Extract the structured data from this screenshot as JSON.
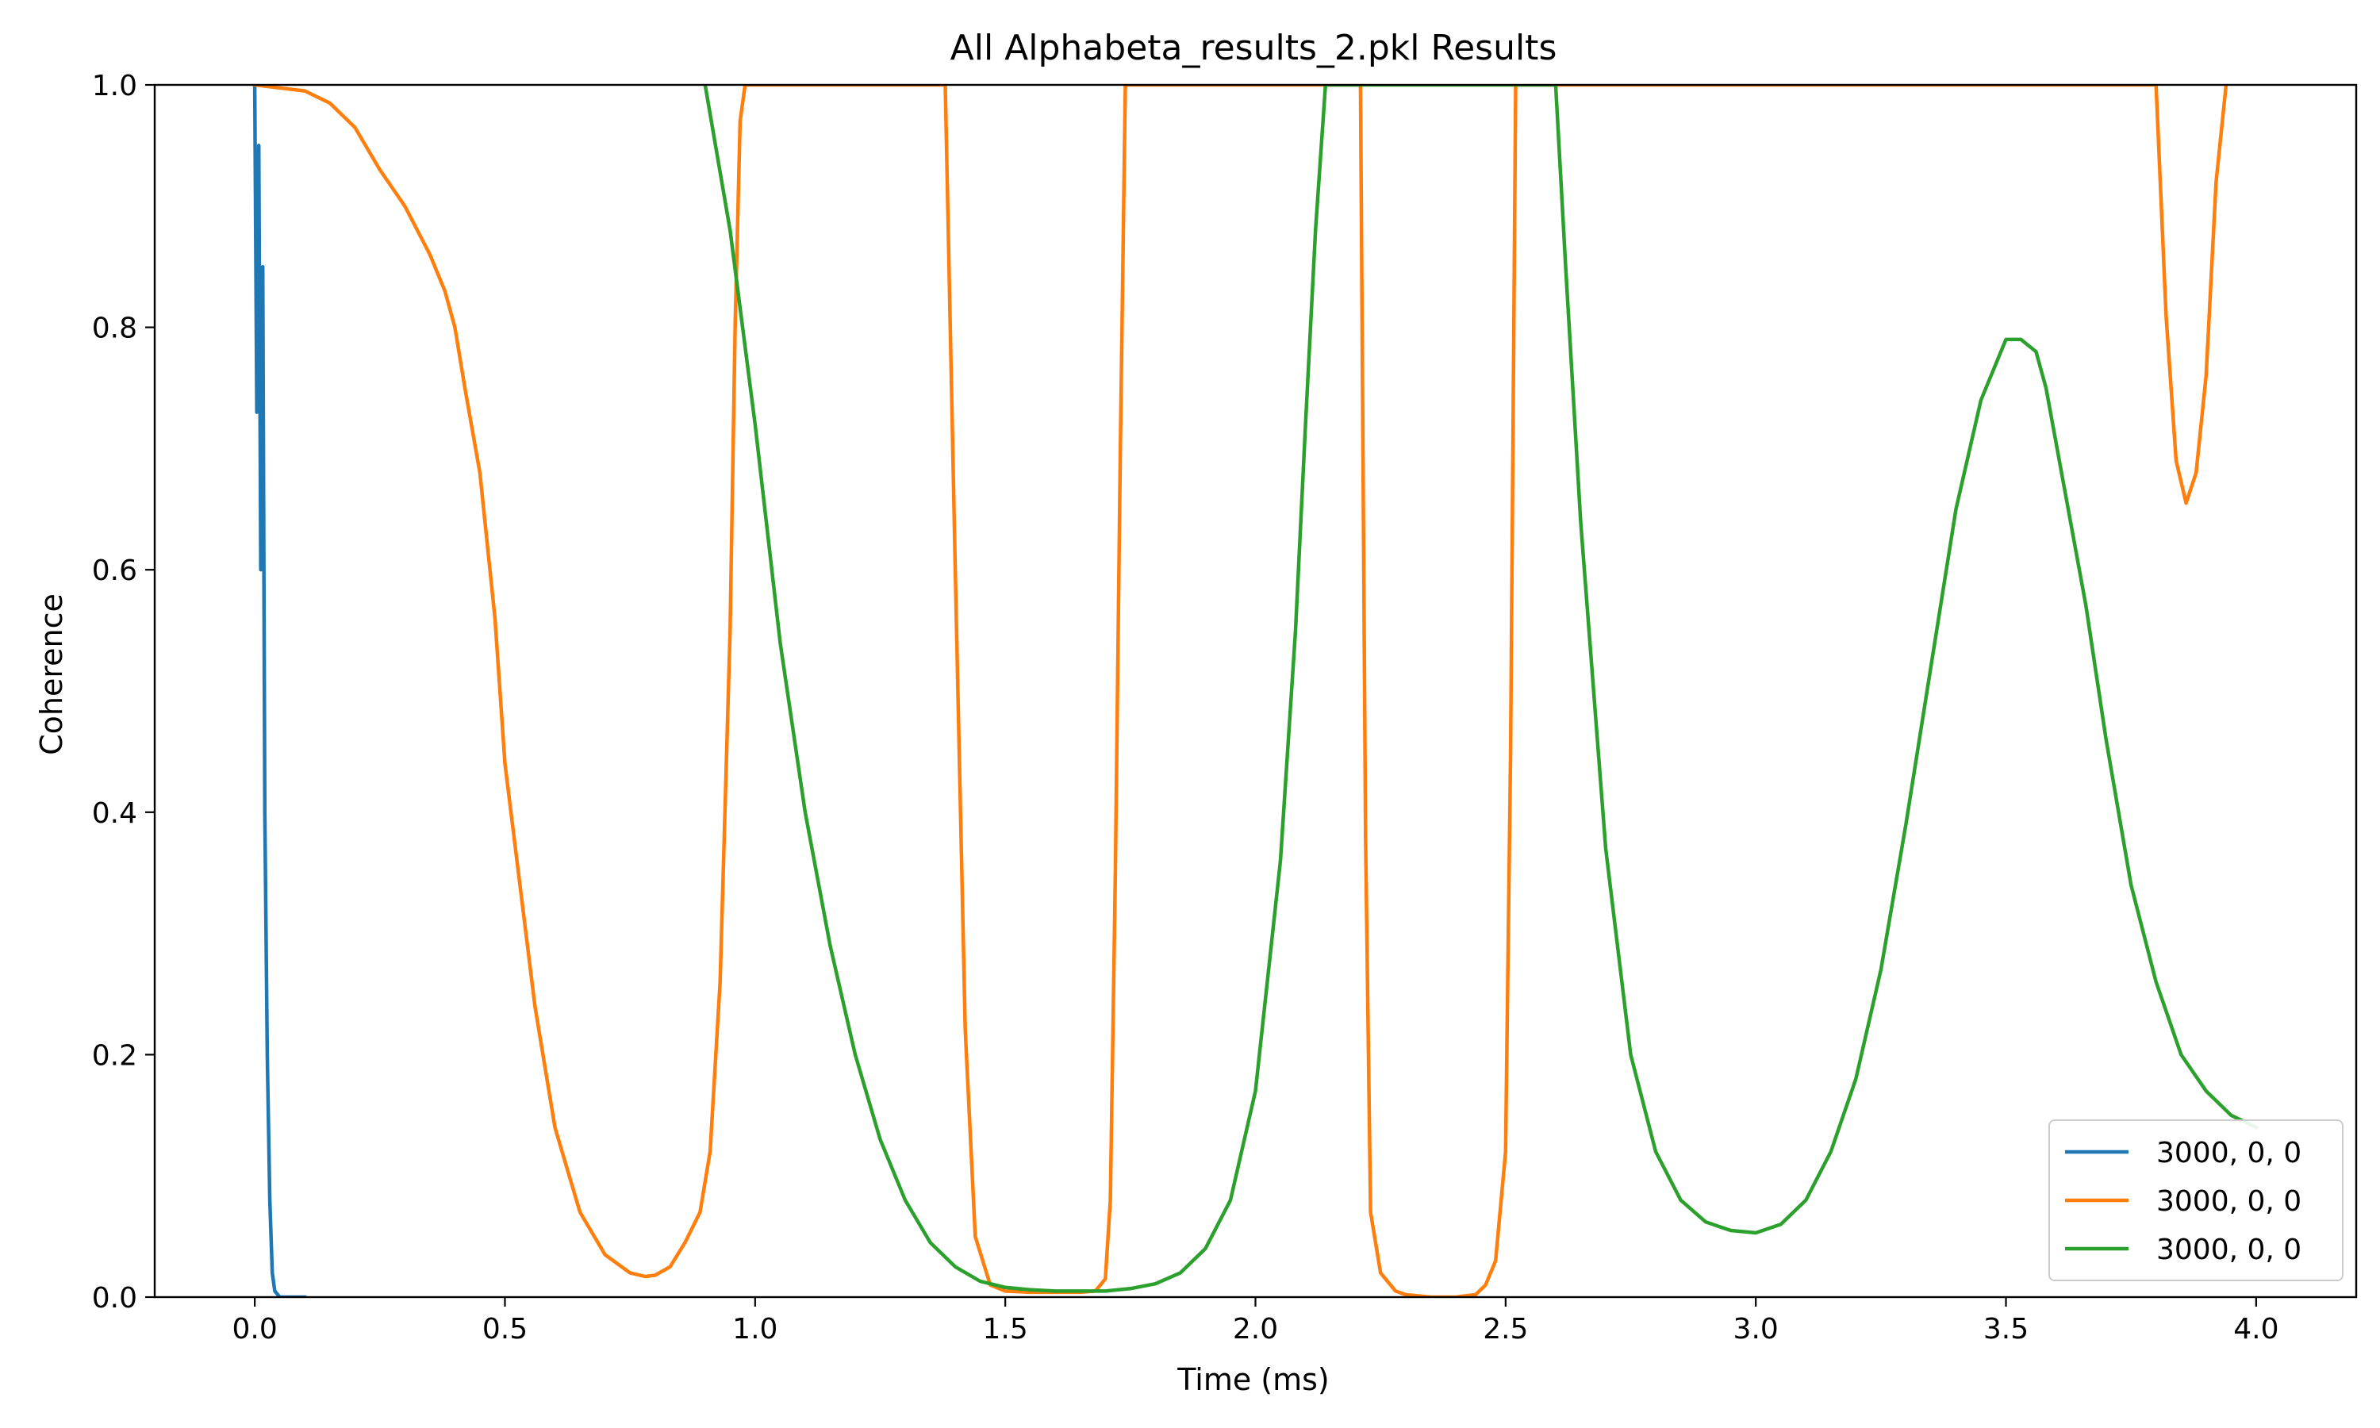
{
  "chart_data": {
    "type": "line",
    "title": "All Alphabeta_results_2.pkl Results",
    "xlabel": "Time (ms)",
    "ylabel": "Coherence",
    "xlim": [
      -0.2,
      4.2
    ],
    "ylim": [
      0.0,
      1.0
    ],
    "xticks": [
      "0.0",
      "0.5",
      "1.0",
      "1.5",
      "2.0",
      "2.5",
      "3.0",
      "3.5",
      "4.0"
    ],
    "yticks": [
      "0.0",
      "0.2",
      "0.4",
      "0.6",
      "0.8",
      "1.0"
    ],
    "grid": false,
    "legend_position": "lower right",
    "series": [
      {
        "name": "3000, 0, 0",
        "color": "#1f77b4",
        "x": [
          0.0,
          0.004,
          0.008,
          0.012,
          0.016,
          0.02,
          0.025,
          0.03,
          0.035,
          0.04,
          0.05,
          0.07,
          0.1
        ],
        "y": [
          1.0,
          0.73,
          0.95,
          0.6,
          0.85,
          0.4,
          0.2,
          0.08,
          0.02,
          0.005,
          0.0,
          0.0,
          0.0
        ]
      },
      {
        "name": "3000, 0, 0",
        "color": "#ff7f0e",
        "x": [
          0.0,
          0.1,
          0.15,
          0.2,
          0.25,
          0.3,
          0.35,
          0.38,
          0.4,
          0.42,
          0.45,
          0.48,
          0.5,
          0.53,
          0.56,
          0.6,
          0.65,
          0.7,
          0.75,
          0.78,
          0.8,
          0.83,
          0.86,
          0.89,
          0.91,
          0.93,
          0.95,
          0.96,
          0.97,
          0.98,
          1.38,
          1.4,
          1.42,
          1.44,
          1.47,
          1.5,
          1.55,
          1.6,
          1.65,
          1.68,
          1.7,
          1.71,
          1.72,
          1.73,
          1.74,
          2.21,
          2.22,
          2.23,
          2.25,
          2.28,
          2.3,
          2.35,
          2.4,
          2.44,
          2.46,
          2.48,
          2.5,
          2.51,
          2.52,
          3.8,
          3.82,
          3.84,
          3.86,
          3.88,
          3.9,
          3.92,
          3.94
        ],
        "y": [
          1.0,
          0.995,
          0.985,
          0.965,
          0.93,
          0.9,
          0.86,
          0.83,
          0.8,
          0.75,
          0.68,
          0.56,
          0.44,
          0.34,
          0.24,
          0.14,
          0.07,
          0.035,
          0.02,
          0.017,
          0.018,
          0.025,
          0.045,
          0.07,
          0.12,
          0.26,
          0.55,
          0.8,
          0.97,
          1.0,
          1.0,
          0.6,
          0.22,
          0.05,
          0.01,
          0.005,
          0.004,
          0.004,
          0.004,
          0.005,
          0.015,
          0.08,
          0.35,
          0.7,
          1.0,
          1.0,
          0.38,
          0.07,
          0.02,
          0.005,
          0.002,
          0.0,
          0.0,
          0.002,
          0.01,
          0.03,
          0.12,
          0.45,
          1.0,
          1.0,
          0.81,
          0.69,
          0.655,
          0.68,
          0.76,
          0.92,
          1.0
        ]
      },
      {
        "name": "3000, 0, 0",
        "color": "#2ca02c",
        "x": [
          0.9,
          0.95,
          1.0,
          1.05,
          1.1,
          1.15,
          1.2,
          1.25,
          1.3,
          1.35,
          1.4,
          1.45,
          1.5,
          1.55,
          1.6,
          1.65,
          1.7,
          1.75,
          1.8,
          1.85,
          1.9,
          1.95,
          2.0,
          2.05,
          2.08,
          2.1,
          2.12,
          2.14,
          2.6,
          2.62,
          2.65,
          2.7,
          2.75,
          2.8,
          2.85,
          2.9,
          2.95,
          3.0,
          3.05,
          3.1,
          3.15,
          3.2,
          3.25,
          3.3,
          3.35,
          3.4,
          3.45,
          3.5,
          3.53,
          3.56,
          3.58,
          3.62,
          3.66,
          3.7,
          3.75,
          3.8,
          3.85,
          3.9,
          3.95,
          4.0
        ],
        "y": [
          1.0,
          0.88,
          0.72,
          0.54,
          0.4,
          0.29,
          0.2,
          0.13,
          0.08,
          0.045,
          0.025,
          0.013,
          0.008,
          0.006,
          0.005,
          0.005,
          0.005,
          0.007,
          0.011,
          0.02,
          0.04,
          0.08,
          0.17,
          0.36,
          0.55,
          0.72,
          0.88,
          1.0,
          1.0,
          0.85,
          0.64,
          0.37,
          0.2,
          0.12,
          0.08,
          0.062,
          0.055,
          0.053,
          0.06,
          0.08,
          0.12,
          0.18,
          0.27,
          0.39,
          0.52,
          0.65,
          0.74,
          0.79,
          0.79,
          0.78,
          0.75,
          0.66,
          0.57,
          0.46,
          0.34,
          0.26,
          0.2,
          0.17,
          0.15,
          0.14
        ]
      }
    ]
  }
}
